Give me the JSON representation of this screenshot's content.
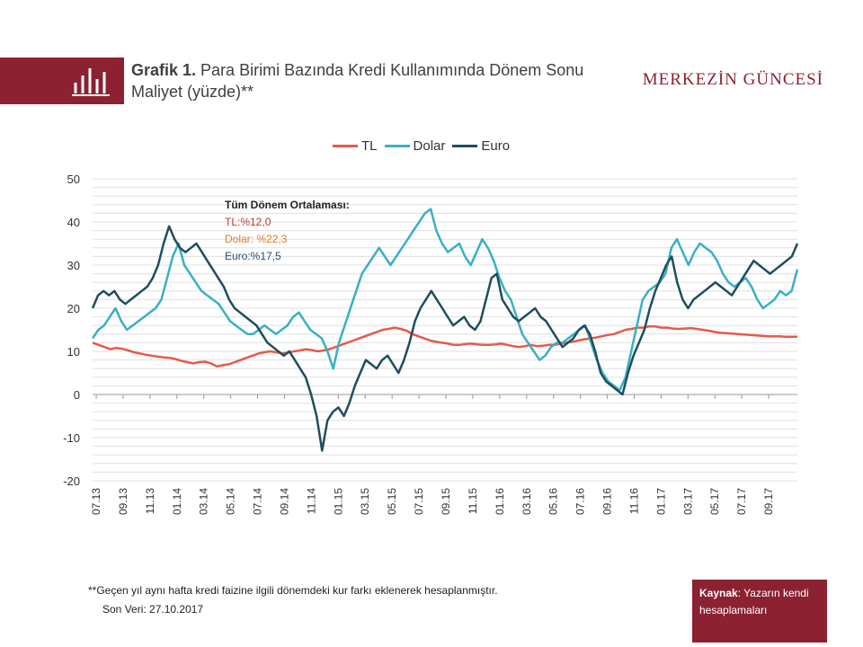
{
  "header": {
    "title_bold": "Grafik 1.",
    "title_rest": " Para Birimi Bazında Kredi Kullanımında Dönem Sonu Maliyet (yüzde)**",
    "brand": "MERKEZİN GÜNCESİ",
    "icon": "bar-chart-icon"
  },
  "annotation": {
    "heading": "Tüm Dönem Ortalaması:",
    "tl": "TL:%12,0",
    "dolar": "Dolar: %22,3",
    "euro": "Euro:%17,5"
  },
  "footer": {
    "footnote": "**Geçen yıl aynı hafta kredi faizine ilgili dönemdeki kur farkı eklenerek hesaplanmıştır.",
    "last_data": "Son Veri: 27.10.2017",
    "source_label": "Kaynak",
    "source_text": ": Yazarın kendi hesaplamaları"
  },
  "colors": {
    "brand": "#8b2131",
    "tl": "#e8594a",
    "dolar": "#3ab0c3",
    "euro": "#1f4e5f",
    "annot_tl": "#c0392b",
    "annot_dolar": "#e07b28",
    "annot_euro": "#1f4e79"
  },
  "chart_data": {
    "type": "line",
    "ylim": [
      -20,
      50
    ],
    "yticks": [
      -20,
      -10,
      0,
      10,
      20,
      30,
      40,
      50
    ],
    "xticks": [
      "07.13",
      "09.13",
      "11.13",
      "01.14",
      "03.14",
      "05.14",
      "07.14",
      "09.14",
      "11.14",
      "01.15",
      "03.15",
      "05.15",
      "07.15",
      "09.15",
      "11.15",
      "01.16",
      "03.16",
      "05.16",
      "07.16",
      "09.16",
      "11.16",
      "01.17",
      "03.17",
      "05.17",
      "07.17",
      "09.17"
    ],
    "x_start": "07.13",
    "x_end": "10.17",
    "grid": true,
    "legend_position": "top",
    "series": [
      {
        "name": "TL",
        "values": [
          12,
          11.5,
          11,
          10.5,
          10.8,
          10.6,
          10.2,
          9.8,
          9.5,
          9.2,
          9,
          8.8,
          8.6,
          8.5,
          8.2,
          7.8,
          7.5,
          7.2,
          7.5,
          7.6,
          7.2,
          6.5,
          6.8,
          7,
          7.5,
          8,
          8.5,
          9,
          9.5,
          9.8,
          10,
          9.8,
          9.5,
          9.7,
          10,
          10.2,
          10.5,
          10.3,
          10,
          10.2,
          10.5,
          11,
          11.5,
          12,
          12.5,
          13,
          13.5,
          14,
          14.5,
          15,
          15.2,
          15.5,
          15.2,
          14.8,
          14,
          13.5,
          13,
          12.5,
          12.2,
          12,
          11.8,
          11.5,
          11.5,
          11.7,
          11.8,
          11.6,
          11.5,
          11.5,
          11.6,
          11.8,
          11.5,
          11.2,
          11,
          11.2,
          11.5,
          11.2,
          11.3,
          11.5,
          11.5,
          11.8,
          12,
          12.2,
          12.5,
          12.8,
          13,
          13.2,
          13.5,
          13.8,
          14,
          14.5,
          15,
          15.2,
          15.5,
          15.5,
          15.8,
          15.8,
          15.5,
          15.5,
          15.3,
          15.2,
          15.3,
          15.4,
          15.2,
          15,
          14.8,
          14.5,
          14.3,
          14.2,
          14.1,
          14,
          13.9,
          13.8,
          13.7,
          13.6,
          13.5,
          13.5,
          13.5,
          13.4,
          13.4,
          13.4
        ]
      },
      {
        "name": "Dolar",
        "values": [
          13,
          15,
          16,
          18,
          20,
          17,
          15,
          16,
          17,
          18,
          19,
          20,
          22,
          27,
          32,
          35,
          30,
          28,
          26,
          24,
          23,
          22,
          21,
          19,
          17,
          16,
          15,
          14,
          14,
          15,
          16,
          15,
          14,
          15,
          16,
          18,
          19,
          17,
          15,
          14,
          13,
          10,
          6,
          12,
          16,
          20,
          24,
          28,
          30,
          32,
          34,
          32,
          30,
          32,
          34,
          36,
          38,
          40,
          42,
          43,
          38,
          35,
          33,
          34,
          35,
          32,
          30,
          33,
          36,
          34,
          31,
          27,
          24,
          22,
          18,
          14,
          12,
          10,
          8,
          9,
          11,
          12,
          12,
          13,
          14,
          15,
          16,
          12,
          8,
          5,
          3,
          2,
          1,
          4,
          10,
          16,
          22,
          24,
          25,
          26,
          28,
          34,
          36,
          33,
          30,
          33,
          35,
          34,
          33,
          31,
          28,
          26,
          25,
          26,
          27,
          25,
          22,
          20,
          21,
          22,
          24,
          23,
          24,
          29
        ]
      },
      {
        "name": "Euro",
        "values": [
          20,
          23,
          24,
          23,
          24,
          22,
          21,
          22,
          23,
          24,
          25,
          27,
          30,
          35,
          39,
          36,
          34,
          33,
          34,
          35,
          33,
          31,
          29,
          27,
          25,
          22,
          20,
          19,
          18,
          17,
          16,
          14,
          12,
          11,
          10,
          9,
          10,
          8,
          6,
          4,
          0,
          -5,
          -13,
          -6,
          -4,
          -3,
          -5,
          -2,
          2,
          5,
          8,
          7,
          6,
          8,
          9,
          7,
          5,
          8,
          12,
          17,
          20,
          22,
          24,
          22,
          20,
          18,
          16,
          17,
          18,
          16,
          15,
          17,
          22,
          27,
          28,
          22,
          20,
          18,
          17,
          18,
          19,
          20,
          18,
          17,
          15,
          13,
          11,
          12,
          13,
          15,
          16,
          14,
          10,
          5,
          3,
          2,
          1,
          0,
          5,
          9,
          12,
          15,
          20,
          24,
          27,
          30,
          32,
          26,
          22,
          20,
          22,
          23,
          24,
          25,
          26,
          25,
          24,
          23,
          25,
          27,
          29,
          31,
          30,
          29,
          28,
          29,
          30,
          31,
          32,
          35
        ]
      }
    ]
  }
}
